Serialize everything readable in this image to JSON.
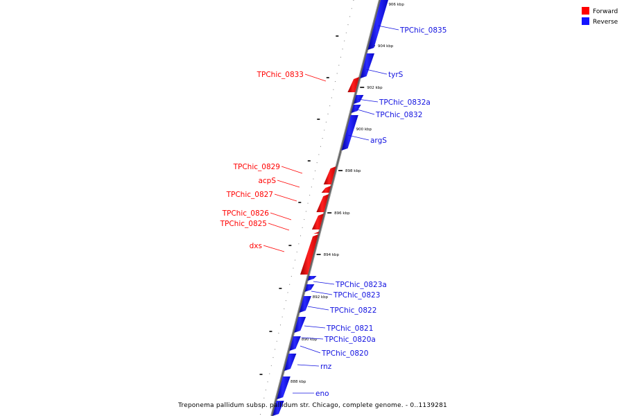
{
  "caption": "Treponema pallidum subsp. pallidum str. Chicago, complete genome. - 0..1139281",
  "legend": [
    {
      "label": "Forward",
      "color": "#ff0000"
    },
    {
      "label": "Reverse",
      "color": "#1414ff"
    }
  ],
  "colors": {
    "forward": "#ff0000",
    "reverse": "#1414ff",
    "backbone": "#888888"
  },
  "ticks": [
    "906 kbp",
    "904 kbp",
    "902 kbp",
    "900 kbp",
    "898 kbp",
    "896 kbp",
    "894 kbp",
    "892 kbp",
    "890 kbp",
    "888 kbp"
  ],
  "forward_genes": [
    "TPChic_0833",
    "TPChic_0829",
    "acpS",
    "TPChic_0827",
    "TPChic_0826",
    "TPChic_0825",
    "dxs"
  ],
  "reverse_genes": [
    "TPChic_0835",
    "tyrS",
    "TPChic_0832a",
    "TPChic_0832",
    "argS",
    "TPChic_0823a",
    "TPChic_0823",
    "TPChic_0822",
    "TPChic_0821",
    "TPChic_0820a",
    "TPChic_0820",
    "rnz",
    "eno"
  ]
}
